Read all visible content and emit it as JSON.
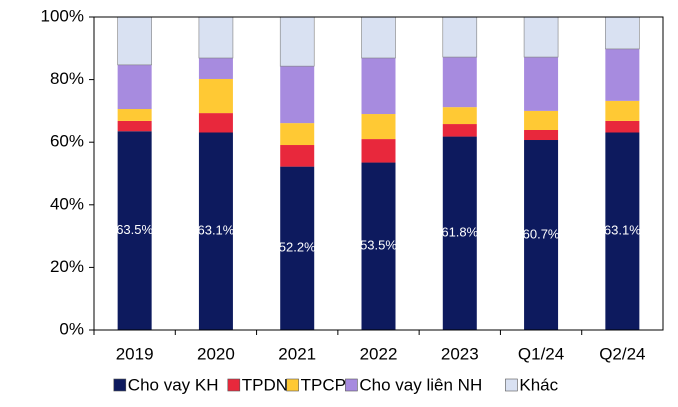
{
  "chart_data": {
    "type": "stacked_bar",
    "categories": [
      "2019",
      "2020",
      "2021",
      "2022",
      "2023",
      "Q1/24",
      "Q2/24"
    ],
    "series": [
      {
        "name": "Cho vay KH",
        "color": "#0d1a5e",
        "values": [
          63.5,
          63.1,
          52.2,
          53.5,
          61.8,
          60.7,
          63.1
        ],
        "value_labels": [
          "63.5%",
          "63.1%",
          "52.2%",
          "53.5%",
          "61.8%",
          "60.7%",
          "63.1%"
        ]
      },
      {
        "name": "TPDN",
        "color": "#e8283c",
        "values": [
          3.3,
          6.2,
          6.9,
          7.5,
          4.0,
          3.2,
          3.7
        ]
      },
      {
        "name": "TPCP",
        "color": "#ffc934",
        "values": [
          3.8,
          10.9,
          7.0,
          8.0,
          5.4,
          6.1,
          6.4
        ]
      },
      {
        "name": "Cho vay liên NH",
        "color": "#a78bdf",
        "values": [
          14.1,
          6.7,
          18.2,
          17.9,
          16.0,
          17.2,
          16.6
        ]
      },
      {
        "name": "Khác",
        "color": "#d9e1f2",
        "values": [
          15.3,
          13.1,
          15.7,
          13.1,
          12.8,
          12.8,
          10.2
        ]
      }
    ],
    "ylim": [
      0,
      100
    ],
    "yticks": [
      {
        "value": 0,
        "label": "0%"
      },
      {
        "value": 20,
        "label": "20%"
      },
      {
        "value": 40,
        "label": "40%"
      },
      {
        "value": 60,
        "label": "60%"
      },
      {
        "value": 80,
        "label": "80%"
      },
      {
        "value": 100,
        "label": "100%"
      }
    ],
    "legend": "bottom"
  }
}
